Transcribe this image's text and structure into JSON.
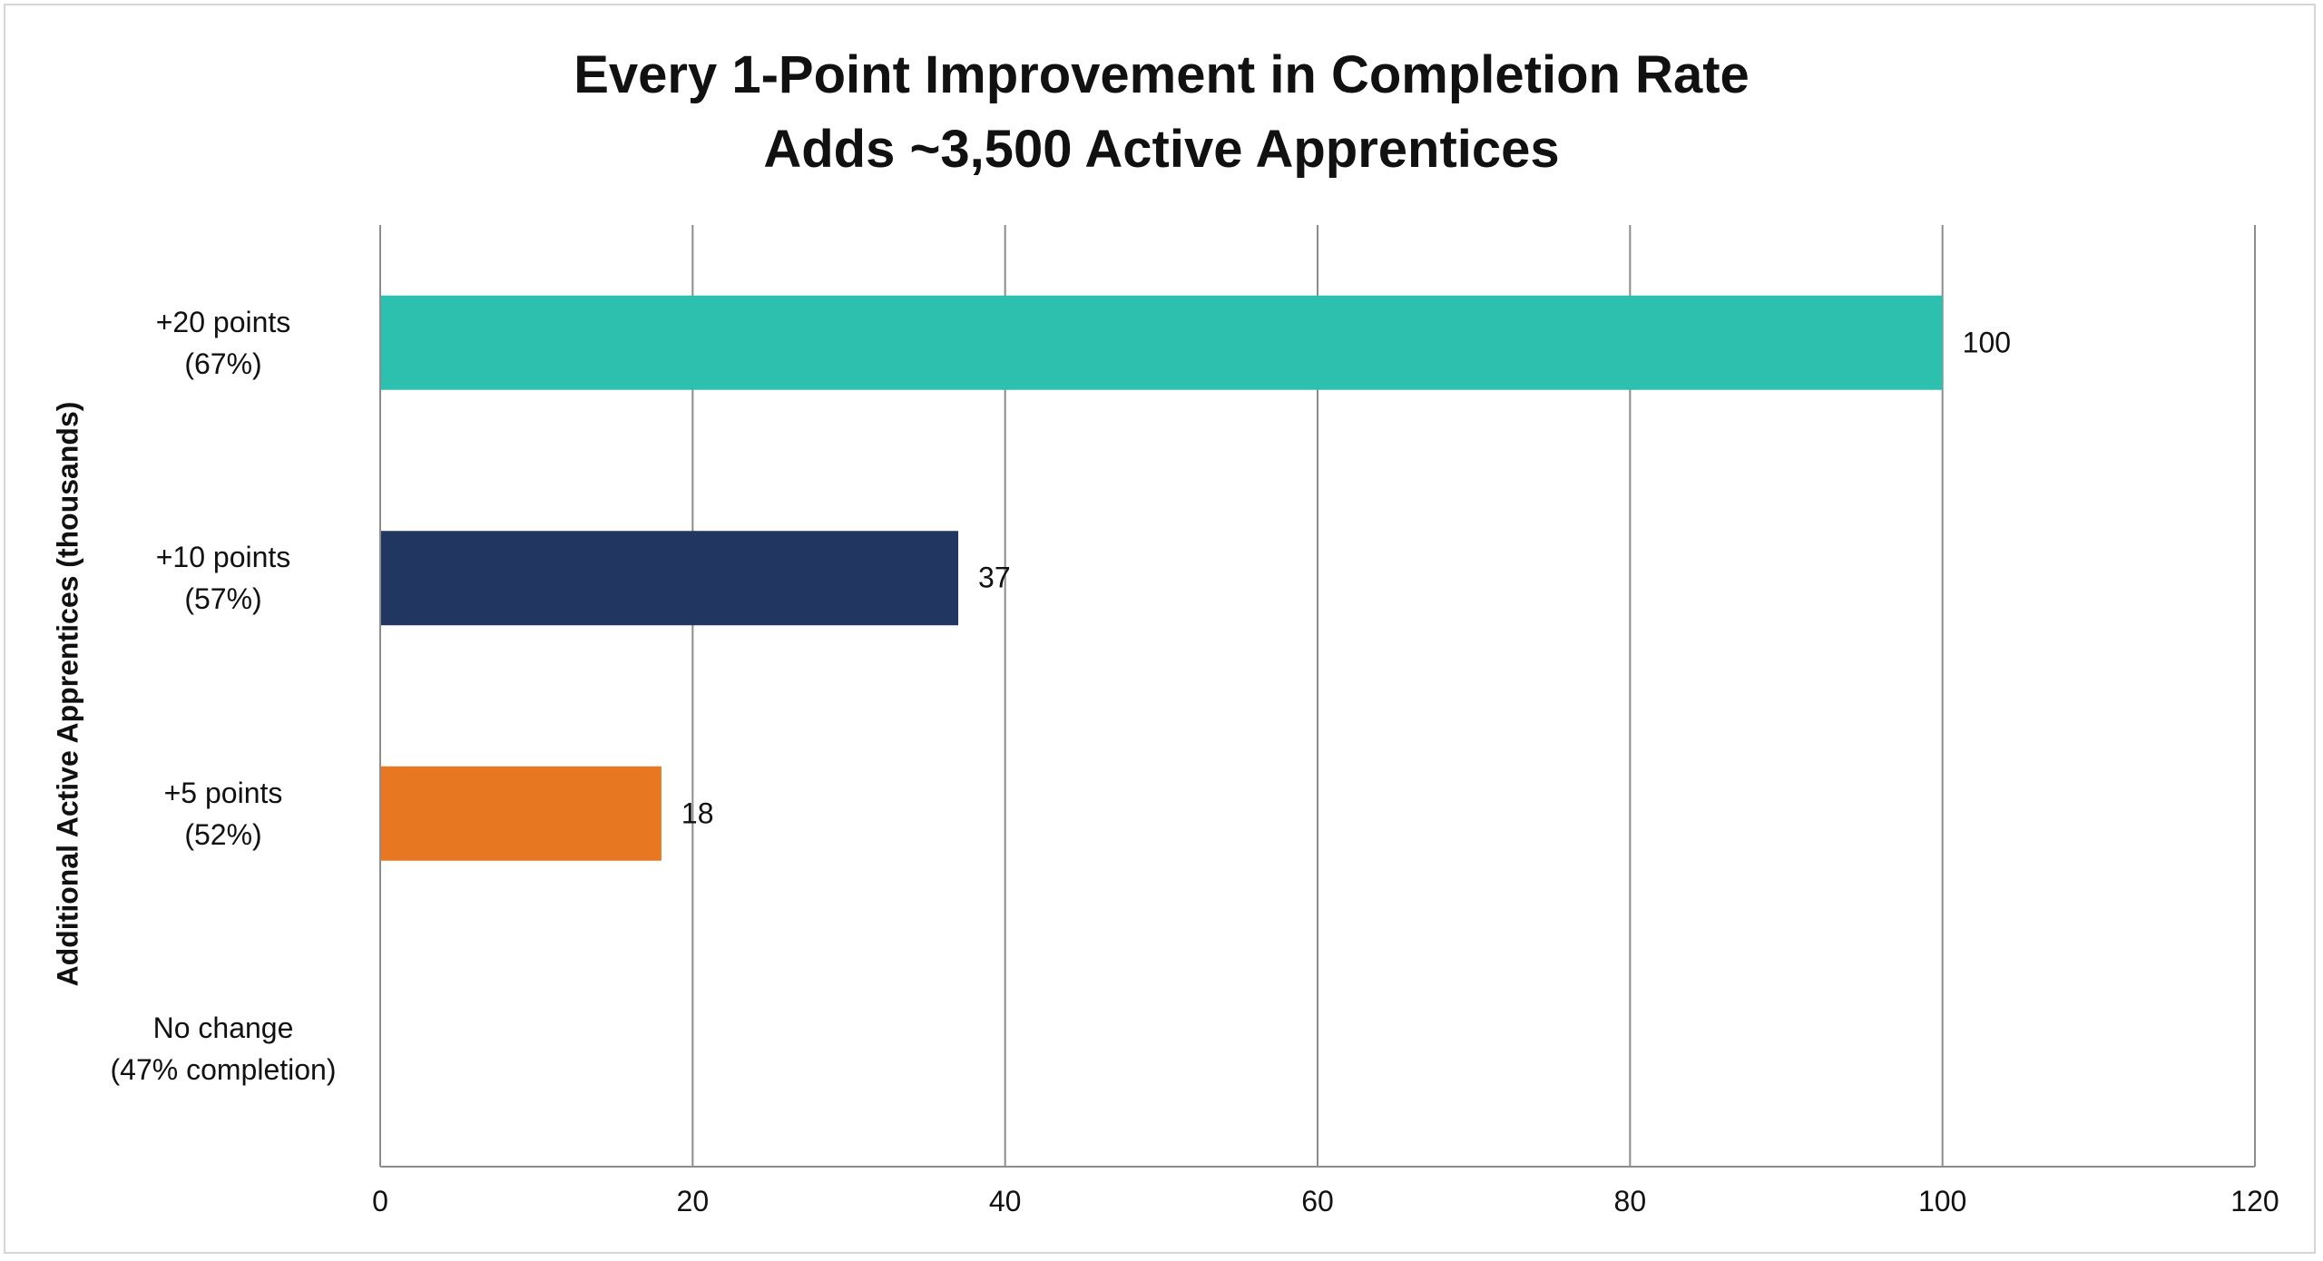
{
  "chart_data": {
    "type": "bar",
    "orientation": "horizontal",
    "title_lines": [
      "Every 1-Point Improvement in Completion Rate",
      "Adds ~3,500 Active Apprentices"
    ],
    "ylabel": "Additional Active Apprentices (thousands)",
    "xlabel": "",
    "categories": [
      [
        "+20 points",
        "(67%)"
      ],
      [
        "+10 points",
        "(57%)"
      ],
      [
        "+5 points",
        "(52%)"
      ],
      [
        "No change",
        "(47% completion)"
      ]
    ],
    "values": [
      100,
      37,
      18,
      0
    ],
    "value_labels": [
      "100",
      "37",
      "18",
      ""
    ],
    "colors": [
      "#2ec0ae",
      "#213761",
      "#e87722",
      "#ffffff"
    ],
    "xlim": [
      0,
      120
    ],
    "xticks": [
      0,
      20,
      40,
      60,
      80,
      100,
      120
    ],
    "grid": true,
    "legend": "none"
  }
}
